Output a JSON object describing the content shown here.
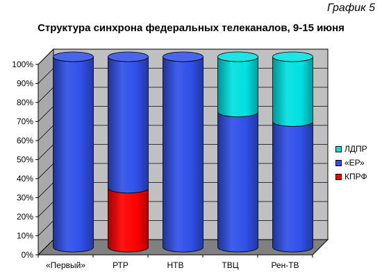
{
  "page": {
    "caption": "График 5",
    "title": "Структура синхрона федеральных телеканалов, 9-15 июня"
  },
  "chart_data": {
    "type": "bar",
    "stacked": true,
    "style": "3d-cylinder",
    "categories": [
      "«Первый»",
      "РТР",
      "НТВ",
      "ТВЦ",
      "Рен-ТВ"
    ],
    "series": [
      {
        "name": "КПРФ",
        "color": "#ff0000",
        "values": [
          0,
          31,
          0,
          0,
          0
        ]
      },
      {
        "name": "«ЕР»",
        "color": "#3050e8",
        "values": [
          100,
          69,
          100,
          71,
          66
        ]
      },
      {
        "name": "ЛДПР",
        "color": "#00e0e0",
        "values": [
          0,
          0,
          0,
          29,
          34
        ]
      }
    ],
    "y_ticks": [
      "0%",
      "10%",
      "20%",
      "30%",
      "40%",
      "50%",
      "60%",
      "70%",
      "80%",
      "90%",
      "100%"
    ],
    "ylim": [
      0,
      100
    ],
    "y_unit": "%",
    "grid": true,
    "legend_position": "right",
    "legend_order": [
      "ЛДПР",
      "«ЕР»",
      "КПРФ"
    ],
    "wall_color": "#c0c0c0",
    "floor_color": "#808080"
  }
}
